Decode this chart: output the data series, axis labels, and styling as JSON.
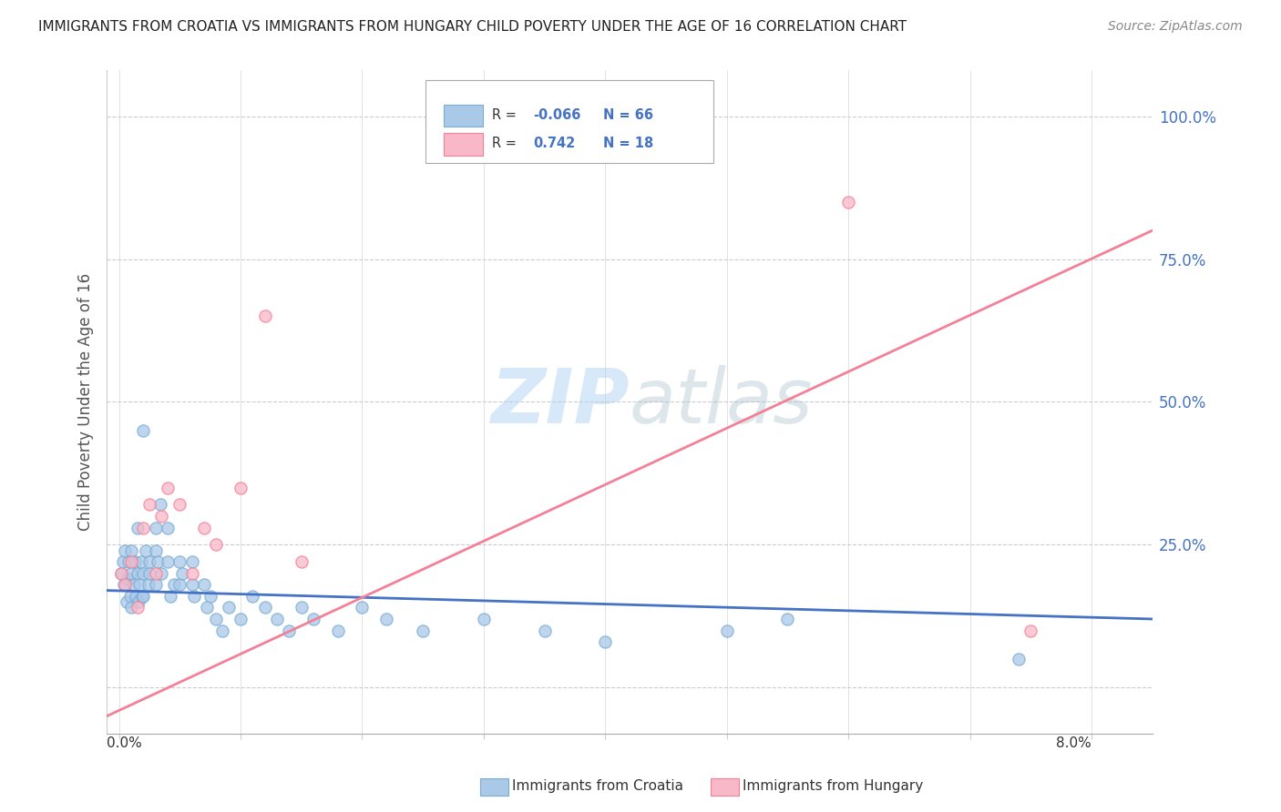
{
  "title": "IMMIGRANTS FROM CROATIA VS IMMIGRANTS FROM HUNGARY CHILD POVERTY UNDER THE AGE OF 16 CORRELATION CHART",
  "source": "Source: ZipAtlas.com",
  "ylabel": "Child Poverty Under the Age of 16",
  "ytick_labels": [
    "",
    "25.0%",
    "50.0%",
    "75.0%",
    "100.0%"
  ],
  "watermark_text": "ZIPatlas",
  "croatia_color_fill": "#aac8e8",
  "croatia_color_edge": "#7aadd4",
  "hungary_color_fill": "#f8b8c8",
  "hungary_color_edge": "#f48098",
  "croatia_line_color": "#4472c4",
  "hungary_line_color": "#f48098",
  "background_color": "#ffffff",
  "grid_color": "#cccccc",
  "title_color": "#222222",
  "source_color": "#888888",
  "ytick_color": "#4472c4",
  "ylabel_color": "#555555",
  "legend_R_color": "#4472c4",
  "legend_label_color": "#333333",
  "xlim_min": -0.001,
  "xlim_max": 0.085,
  "ylim_min": -0.08,
  "ylim_max": 1.08,
  "scatter_size": 90,
  "scatter_alpha": 0.75,
  "croatia_x": [
    0.0002,
    0.0003,
    0.0004,
    0.0005,
    0.0006,
    0.0007,
    0.0008,
    0.0009,
    0.001,
    0.001,
    0.001,
    0.0012,
    0.0013,
    0.0014,
    0.0015,
    0.0015,
    0.0016,
    0.0017,
    0.0018,
    0.0019,
    0.002,
    0.002,
    0.002,
    0.0022,
    0.0024,
    0.0025,
    0.0025,
    0.003,
    0.003,
    0.003,
    0.0032,
    0.0034,
    0.0035,
    0.004,
    0.004,
    0.0042,
    0.0045,
    0.005,
    0.005,
    0.0052,
    0.006,
    0.006,
    0.0062,
    0.007,
    0.0072,
    0.0075,
    0.008,
    0.0085,
    0.009,
    0.01,
    0.011,
    0.012,
    0.013,
    0.014,
    0.015,
    0.016,
    0.018,
    0.02,
    0.022,
    0.025,
    0.03,
    0.035,
    0.04,
    0.05,
    0.055,
    0.074
  ],
  "croatia_y": [
    0.2,
    0.22,
    0.18,
    0.24,
    0.15,
    0.19,
    0.22,
    0.16,
    0.2,
    0.24,
    0.14,
    0.18,
    0.22,
    0.16,
    0.2,
    0.28,
    0.15,
    0.18,
    0.22,
    0.16,
    0.45,
    0.2,
    0.16,
    0.24,
    0.18,
    0.2,
    0.22,
    0.28,
    0.24,
    0.18,
    0.22,
    0.32,
    0.2,
    0.28,
    0.22,
    0.16,
    0.18,
    0.22,
    0.18,
    0.2,
    0.18,
    0.22,
    0.16,
    0.18,
    0.14,
    0.16,
    0.12,
    0.1,
    0.14,
    0.12,
    0.16,
    0.14,
    0.12,
    0.1,
    0.14,
    0.12,
    0.1,
    0.14,
    0.12,
    0.1,
    0.12,
    0.1,
    0.08,
    0.1,
    0.12,
    0.05
  ],
  "hungary_x": [
    0.0002,
    0.0005,
    0.001,
    0.0015,
    0.002,
    0.0025,
    0.003,
    0.0035,
    0.004,
    0.005,
    0.006,
    0.007,
    0.008,
    0.01,
    0.012,
    0.015,
    0.06,
    0.075
  ],
  "hungary_y": [
    0.2,
    0.18,
    0.22,
    0.14,
    0.28,
    0.32,
    0.2,
    0.3,
    0.35,
    0.32,
    0.2,
    0.28,
    0.25,
    0.35,
    0.65,
    0.22,
    0.85,
    0.1
  ],
  "croatia_line_y0": 0.17,
  "croatia_line_y1": 0.12,
  "hungary_line_y0": -0.05,
  "hungary_line_y1": 0.8
}
